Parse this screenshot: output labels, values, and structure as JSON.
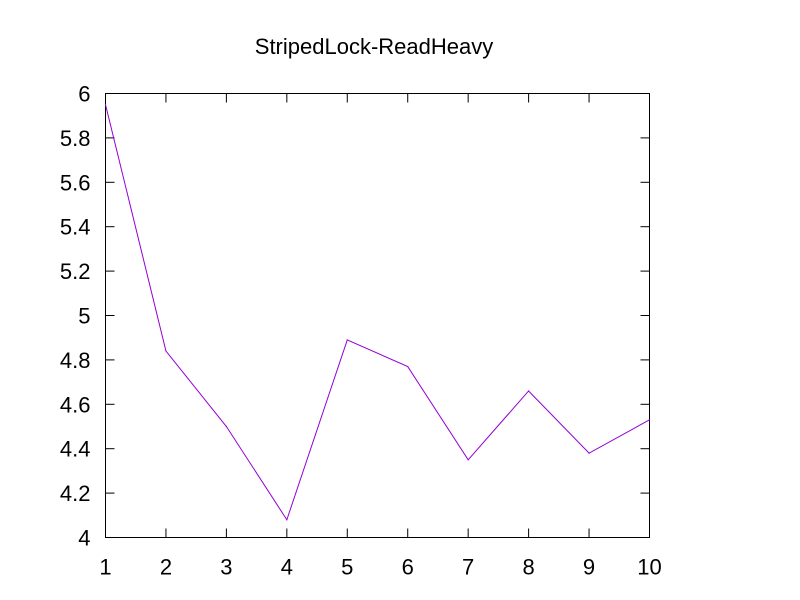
{
  "chart_data": {
    "type": "line",
    "title": "StripedLock-ReadHeavy",
    "xlabel": "",
    "ylabel": "",
    "x": [
      1,
      2,
      3,
      4,
      5,
      6,
      7,
      8,
      9,
      10
    ],
    "xlim": [
      1,
      10
    ],
    "ylim": [
      4,
      6
    ],
    "xticks": [
      "1",
      "2",
      "3",
      "4",
      "5",
      "6",
      "7",
      "8",
      "9",
      "10"
    ],
    "yticks": [
      "4",
      "4.2",
      "4.4",
      "4.6",
      "4.8",
      "5",
      "5.2",
      "5.4",
      "5.6",
      "5.8",
      "6"
    ],
    "grid": false,
    "legend": "none",
    "series": [
      {
        "color": "#9400d3",
        "values": [
          5.95,
          4.84,
          4.5,
          4.08,
          4.89,
          4.77,
          4.35,
          4.66,
          4.38,
          4.53
        ]
      }
    ]
  }
}
